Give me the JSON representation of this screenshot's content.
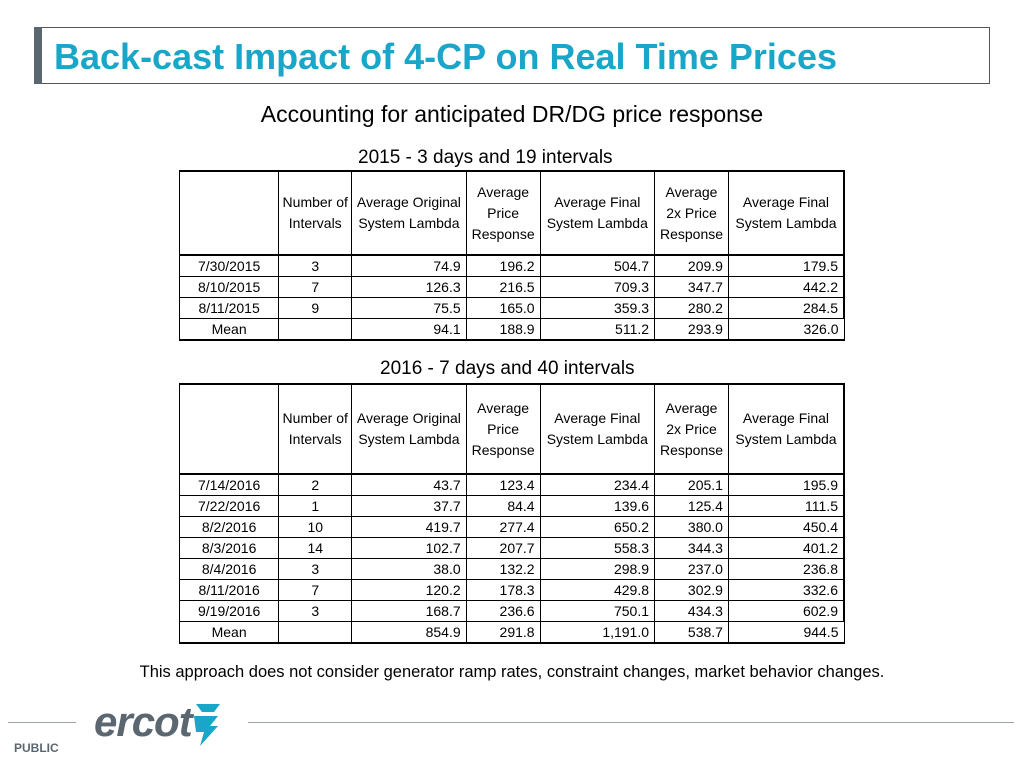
{
  "title": "Back-cast Impact of 4-CP on Real Time Prices",
  "subtitle": "Accounting for anticipated DR/DG price response",
  "columns": [
    "Number of Intervals",
    "Average Original System Lambda",
    "Average Price Response",
    "Average Final System Lambda",
    "Average 2x Price Response",
    "Average Final System Lambda"
  ],
  "table2015": {
    "caption": "2015 - 3 days and 19 intervals",
    "rows": [
      {
        "date": "7/30/2015",
        "n": "3",
        "orig": "74.9",
        "resp": "196.2",
        "final": "504.7",
        "resp2x": "209.9",
        "final2x": "179.5"
      },
      {
        "date": "8/10/2015",
        "n": "7",
        "orig": "126.3",
        "resp": "216.5",
        "final": "709.3",
        "resp2x": "347.7",
        "final2x": "442.2"
      },
      {
        "date": "8/11/2015",
        "n": "9",
        "orig": "75.5",
        "resp": "165.0",
        "final": "359.3",
        "resp2x": "280.2",
        "final2x": "284.5"
      }
    ],
    "mean": {
      "label": "Mean",
      "orig": "94.1",
      "resp": "188.9",
      "final": "511.2",
      "resp2x": "293.9",
      "final2x": "326.0"
    }
  },
  "table2016": {
    "caption": "2016 - 7 days and 40 intervals",
    "rows": [
      {
        "date": "7/14/2016",
        "n": "2",
        "orig": "43.7",
        "resp": "123.4",
        "final": "234.4",
        "resp2x": "205.1",
        "final2x": "195.9"
      },
      {
        "date": "7/22/2016",
        "n": "1",
        "orig": "37.7",
        "resp": "84.4",
        "final": "139.6",
        "resp2x": "125.4",
        "final2x": "111.5"
      },
      {
        "date": "8/2/2016",
        "n": "10",
        "orig": "419.7",
        "resp": "277.4",
        "final": "650.2",
        "resp2x": "380.0",
        "final2x": "450.4"
      },
      {
        "date": "8/3/2016",
        "n": "14",
        "orig": "102.7",
        "resp": "207.7",
        "final": "558.3",
        "resp2x": "344.3",
        "final2x": "401.2"
      },
      {
        "date": "8/4/2016",
        "n": "3",
        "orig": "38.0",
        "resp": "132.2",
        "final": "298.9",
        "resp2x": "237.0",
        "final2x": "236.8"
      },
      {
        "date": "8/11/2016",
        "n": "7",
        "orig": "120.2",
        "resp": "178.3",
        "final": "429.8",
        "resp2x": "302.9",
        "final2x": "332.6"
      },
      {
        "date": "9/19/2016",
        "n": "3",
        "orig": "168.7",
        "resp": "236.6",
        "final": "750.1",
        "resp2x": "434.3",
        "final2x": "602.9"
      }
    ],
    "mean": {
      "label": "Mean",
      "orig": "854.9",
      "resp": "291.8",
      "final": "1,191.0",
      "resp2x": "538.7",
      "final2x": "944.5"
    }
  },
  "footnote": "This approach does not consider generator ramp rates, constraint changes, market behavior changes.",
  "footer": {
    "logo": "ercot",
    "classification": "PUBLIC"
  }
}
